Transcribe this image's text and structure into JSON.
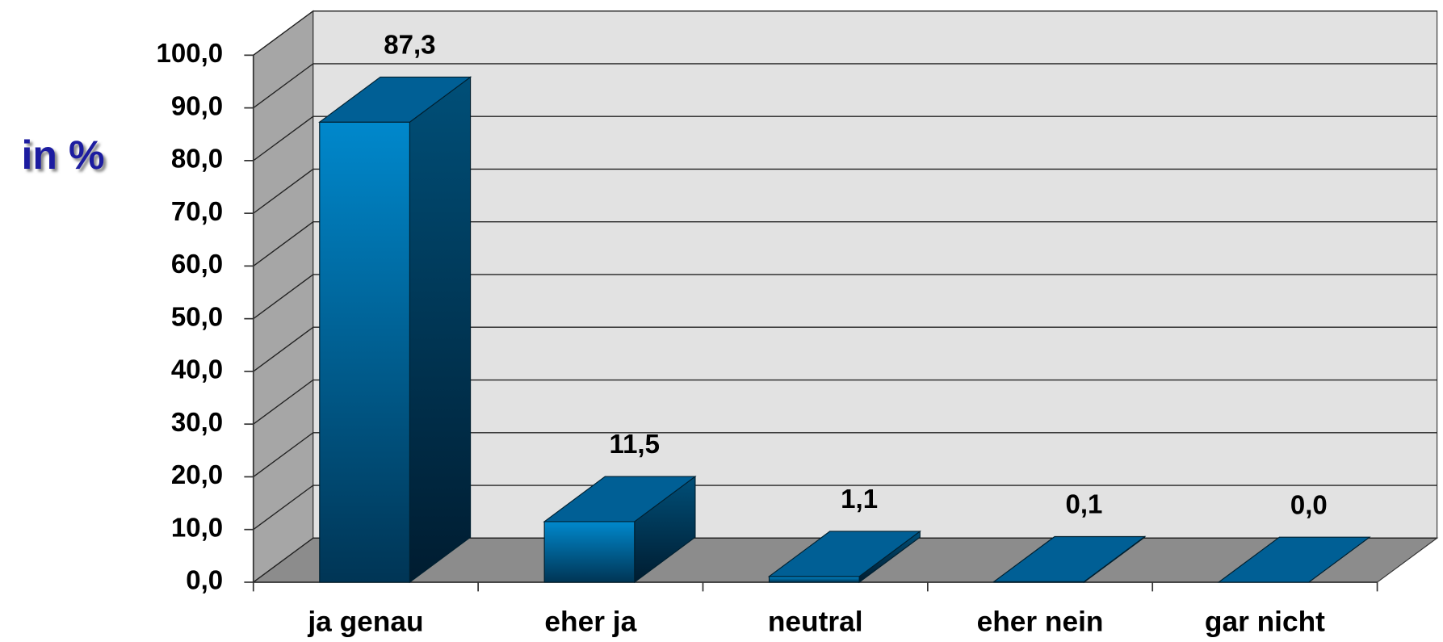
{
  "chart_data": {
    "type": "bar3d",
    "y_label": "in %",
    "categories": [
      "ja genau",
      "eher ja",
      "neutral",
      "eher nein",
      "gar nicht"
    ],
    "values": [
      87.3,
      11.5,
      1.1,
      0.1,
      0.0
    ],
    "value_labels": [
      "87,3",
      "11,5",
      "1,1",
      "0,1",
      "0,0"
    ],
    "color": "#0077b6",
    "ylim": [
      0,
      100
    ],
    "yticks": [
      {
        "value": 0,
        "label": "0,0"
      },
      {
        "value": 10,
        "label": "10,0"
      },
      {
        "value": 20,
        "label": "20,0"
      },
      {
        "value": 30,
        "label": "30,0"
      },
      {
        "value": 40,
        "label": "40,0"
      },
      {
        "value": 50,
        "label": "50,0"
      },
      {
        "value": 60,
        "label": "60,0"
      },
      {
        "value": 70,
        "label": "70,0"
      },
      {
        "value": 80,
        "label": "80,0"
      },
      {
        "value": 90,
        "label": "90,0"
      },
      {
        "value": 100,
        "label": "100,0"
      }
    ],
    "grid": true
  }
}
